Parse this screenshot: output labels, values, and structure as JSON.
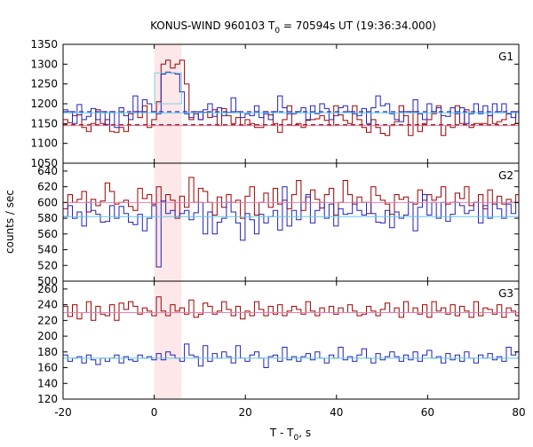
{
  "title": "KONUS-WIND 960103 T",
  "title_sub": "0",
  "title_rest": " = 70594s UT (19:36:34.000)",
  "xlabel": "T - T",
  "xlabel_sub": "0",
  "xlabel_rest": ", s",
  "ylabel": "counts / sec",
  "colors": {
    "red_series": "#a00000",
    "blue_series": "#2222bb",
    "pink_line": "#e080b0",
    "cyan_line": "#60c8e8",
    "highlight": "#fde7e9"
  },
  "chart_data": [
    {
      "type": "line",
      "panel": "G1",
      "title": "G1",
      "xlim": [
        -20,
        80
      ],
      "ylim": [
        1050,
        1350
      ],
      "yticks": [
        1050,
        1100,
        1150,
        1200,
        1250,
        1300,
        1350
      ],
      "xticks": [
        -20,
        0,
        20,
        40,
        60,
        80
      ],
      "highlight_x": [
        0,
        6
      ],
      "bin_start": -20,
      "bin_width": 1.024,
      "series": [
        {
          "color": "red",
          "step": true,
          "values": [
            1160,
            1152,
            1170,
            1172,
            1140,
            1130,
            1150,
            1185,
            1150,
            1160,
            1130,
            1128,
            1140,
            1130,
            1175,
            1180,
            1165,
            1195,
            1140,
            1160,
            1205,
            1300,
            1310,
            1290,
            1300,
            1310,
            1250,
            1160,
            1175,
            1160,
            1178,
            1165,
            1185,
            1145,
            1188,
            1170,
            1150,
            1165,
            1145,
            1160,
            1150,
            1140,
            1140,
            1180,
            1172,
            1150,
            1128,
            1160,
            1195,
            1145,
            1150,
            1140,
            1158,
            1160,
            1162,
            1170,
            1158,
            1145,
            1195,
            1172,
            1158,
            1150,
            1195,
            1160,
            1140,
            1128,
            1160,
            1140,
            1125,
            1120,
            1145,
            1155,
            1195,
            1170,
            1120,
            1180,
            1130,
            1150,
            1160,
            1175,
            1195,
            1120,
            1145,
            1140,
            1195,
            1150,
            1185,
            1140,
            1150,
            1150,
            1150,
            1170,
            1150,
            1155,
            1160,
            1175,
            1180,
            1150
          ]
        },
        {
          "color": "blue",
          "step": true,
          "values": [
            1185,
            1180,
            1150,
            1198,
            1160,
            1168,
            1188,
            1160,
            1180,
            1148,
            1180,
            1140,
            1190,
            1170,
            1160,
            1220,
            1180,
            1210,
            1200,
            1180,
            1175,
            1275,
            1280,
            1278,
            1275,
            1230,
            1175,
            1165,
            1180,
            1160,
            1185,
            1200,
            1168,
            1190,
            1170,
            1178,
            1215,
            1180,
            1165,
            1175,
            1170,
            1195,
            1165,
            1175,
            1160,
            1180,
            1220,
            1190,
            1175,
            1175,
            1180,
            1190,
            1160,
            1195,
            1175,
            1200,
            1188,
            1160,
            1170,
            1190,
            1195,
            1180,
            1175,
            1170,
            1188,
            1150,
            1190,
            1220,
            1195,
            1200,
            1175,
            1160,
            1155,
            1180,
            1180,
            1210,
            1175,
            1160,
            1200,
            1180,
            1190,
            1170,
            1168,
            1190,
            1175,
            1190,
            1150,
            1175,
            1200,
            1175,
            1195,
            1170,
            1200,
            1180,
            1200,
            1175,
            1165,
            1180
          ]
        },
        {
          "color": "pink",
          "constant": 1145
        },
        {
          "color": "cyan",
          "constant": 1177
        },
        {
          "color": "red-dashed",
          "constant": 1147
        },
        {
          "color": "blue-dashed",
          "constant": 1180
        }
      ]
    },
    {
      "type": "line",
      "panel": "G2",
      "title": "G2",
      "xlim": [
        -20,
        80
      ],
      "ylim": [
        500,
        650
      ],
      "yticks": [
        500,
        520,
        540,
        560,
        580,
        600,
        620,
        640
      ],
      "series": [
        {
          "color": "red",
          "step": true,
          "values": [
            592,
            610,
            600,
            604,
            614,
            588,
            604,
            596,
            602,
            625,
            614,
            598,
            600,
            603,
            595,
            590,
            618,
            605,
            610,
            598,
            620,
            600,
            610,
            603,
            580,
            608,
            594,
            632,
            600,
            618,
            614,
            600,
            584,
            607,
            594,
            610,
            600,
            603,
            580,
            608,
            620,
            584,
            600,
            612,
            594,
            618,
            598,
            603,
            592,
            610,
            628,
            590,
            607,
            616,
            604,
            593,
            610,
            618,
            584,
            600,
            628,
            610,
            598,
            607,
            600,
            586,
            620,
            609,
            603,
            598,
            585,
            610,
            604,
            607,
            600,
            598,
            616,
            603,
            610,
            603,
            607,
            620,
            598,
            600,
            612,
            605,
            620,
            596,
            600,
            610,
            592,
            616,
            598,
            608,
            598,
            604,
            600,
            610
          ]
        },
        {
          "color": "blue",
          "step": true,
          "values": [
            582,
            596,
            580,
            588,
            570,
            600,
            590,
            585,
            575,
            576,
            596,
            580,
            595,
            586,
            575,
            572,
            585,
            564,
            580,
            596,
            518,
            602,
            586,
            590,
            582,
            586,
            590,
            578,
            587,
            600,
            560,
            588,
            560,
            575,
            580,
            600,
            588,
            574,
            552,
            586,
            578,
            560,
            585,
            574,
            582,
            590,
            565,
            620,
            570,
            590,
            578,
            600,
            610,
            574,
            590,
            600,
            580,
            598,
            570,
            592,
            585,
            586,
            600,
            590,
            584,
            600,
            586,
            575,
            574,
            590,
            568,
            588,
            580,
            584,
            600,
            564,
            594,
            610,
            584,
            600,
            580,
            600,
            576,
            585,
            600,
            596,
            586,
            590,
            600,
            574,
            596,
            580,
            600,
            592,
            580,
            598,
            586,
            600
          ]
        },
        {
          "color": "pink",
          "constant": 600
        },
        {
          "color": "cyan",
          "constant": 582
        }
      ]
    },
    {
      "type": "line",
      "panel": "G3",
      "title": "G3",
      "xlim": [
        -20,
        80
      ],
      "ylim": [
        120,
        270
      ],
      "yticks": [
        120,
        140,
        160,
        180,
        200,
        220,
        240,
        260
      ],
      "series": [
        {
          "color": "red",
          "step": true,
          "values": [
            238,
            225,
            240,
            222,
            230,
            244,
            220,
            238,
            228,
            226,
            240,
            220,
            242,
            234,
            244,
            238,
            228,
            236,
            232,
            226,
            250,
            232,
            226,
            240,
            232,
            236,
            228,
            246,
            224,
            228,
            242,
            238,
            228,
            232,
            244,
            234,
            226,
            238,
            222,
            232,
            226,
            244,
            234,
            226,
            238,
            228,
            240,
            226,
            232,
            238,
            234,
            228,
            244,
            232,
            226,
            236,
            230,
            238,
            228,
            236,
            230,
            240,
            232,
            226,
            228,
            238,
            232,
            226,
            234,
            242,
            230,
            236,
            224,
            244,
            230,
            236,
            228,
            240,
            224,
            244,
            232,
            236,
            228,
            240,
            226,
            238,
            232,
            224,
            244,
            226,
            236,
            234,
            228,
            240,
            224,
            236,
            232,
            226
          ]
        },
        {
          "color": "blue",
          "step": true,
          "values": [
            176,
            168,
            172,
            174,
            166,
            176,
            170,
            164,
            172,
            168,
            172,
            176,
            166,
            174,
            170,
            168,
            176,
            172,
            174,
            170,
            178,
            170,
            180,
            176,
            172,
            168,
            190,
            176,
            174,
            162,
            188,
            168,
            178,
            172,
            180,
            174,
            166,
            188,
            172,
            168,
            176,
            180,
            172,
            160,
            174,
            176,
            168,
            186,
            170,
            174,
            168,
            174,
            178,
            170,
            180,
            172,
            166,
            176,
            172,
            186,
            170,
            174,
            168,
            176,
            184,
            172,
            166,
            178,
            170,
            174,
            180,
            174,
            168,
            176,
            170,
            180,
            168,
            176,
            182,
            172,
            174,
            166,
            178,
            170,
            176,
            168,
            180,
            172,
            166,
            176,
            172,
            178,
            170,
            174,
            168,
            186,
            176,
            180
          ]
        },
        {
          "color": "pink",
          "constant": 230
        },
        {
          "color": "cyan",
          "constant": 172
        }
      ]
    }
  ]
}
